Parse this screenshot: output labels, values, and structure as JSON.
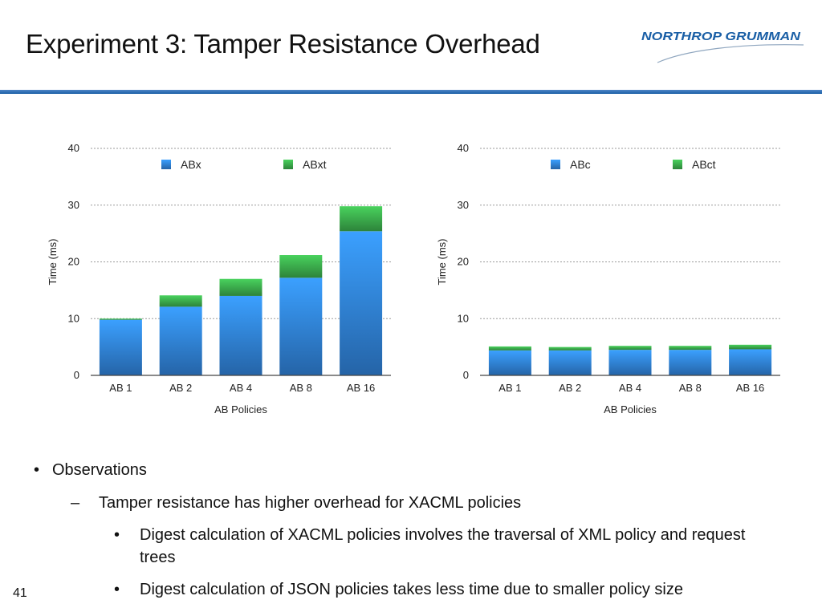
{
  "slide": {
    "title": "Experiment 3: Tamper Resistance Overhead",
    "logo_text": "NORTHROP GRUMMAN",
    "page_number": "41",
    "accent_color": "#1a5fa6"
  },
  "bullets": {
    "level1_marker": "•",
    "level1": "Observations",
    "level2_marker": "–",
    "level2": "Tamper resistance has higher overhead for XACML policies",
    "level3_marker": "•",
    "level3": [
      "Digest calculation of XACML policies involves the traversal of XML policy and request trees",
      "Digest calculation of JSON policies takes less time due to smaller policy size"
    ]
  },
  "chart_data": [
    {
      "type": "bar",
      "stacked": true,
      "categories": [
        "AB 1",
        "AB 2",
        "AB 4",
        "AB 8",
        "AB 16"
      ],
      "series": [
        {
          "name": "ABx",
          "values": [
            9.8,
            12.1,
            14.0,
            17.2,
            25.4
          ],
          "color": "#2f80d6"
        },
        {
          "name": "ABxt",
          "values": [
            0.2,
            2.0,
            3.0,
            4.0,
            4.4
          ],
          "color": "#3aa84a"
        }
      ],
      "xlabel": "AB Policies",
      "ylabel": "Time (ms)",
      "ylim": [
        0,
        40
      ],
      "yticks": [
        0,
        10,
        20,
        30,
        40
      ],
      "grid": true,
      "legend": "top"
    },
    {
      "type": "bar",
      "stacked": true,
      "categories": [
        "AB 1",
        "AB 2",
        "AB 4",
        "AB 8",
        "AB 16"
      ],
      "series": [
        {
          "name": "ABc",
          "values": [
            4.4,
            4.4,
            4.5,
            4.5,
            4.6
          ],
          "color": "#2f80d6"
        },
        {
          "name": "ABct",
          "values": [
            0.7,
            0.6,
            0.7,
            0.7,
            0.8
          ],
          "color": "#3aa84a"
        }
      ],
      "xlabel": "AB Policies",
      "ylabel": "Time (ms)",
      "ylim": [
        0,
        40
      ],
      "yticks": [
        0,
        10,
        20,
        30,
        40
      ],
      "grid": true,
      "legend": "top"
    }
  ]
}
